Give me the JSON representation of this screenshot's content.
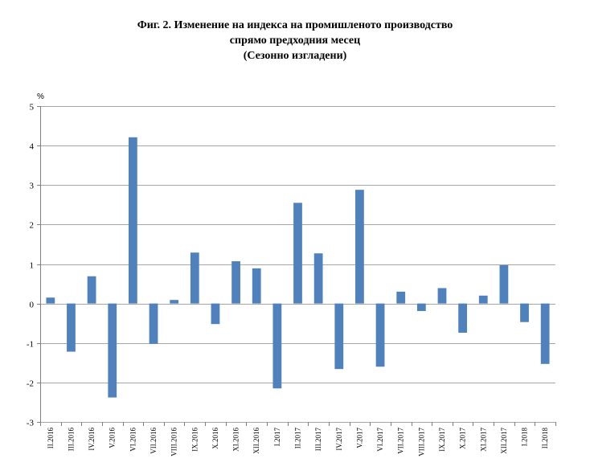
{
  "title_lines": [
    "Фиг. 2. Изменение на индекса на промишленото производство",
    "спрямо предходния месец",
    "(Сезонно изгладени)"
  ],
  "chart_data": {
    "type": "bar",
    "title": "Фиг. 2. Изменение на индекса на промишленото производство спрямо предходния месец (Сезонно изгладени)",
    "ylabel": "%",
    "xlabel": "",
    "ylim": [
      -3,
      5
    ],
    "yticks": [
      -3,
      -2,
      -1,
      0,
      1,
      2,
      3,
      4,
      5
    ],
    "grid": true,
    "legend": "none",
    "bar_color": "#4f81bd",
    "grid_color": "#a6a6a6",
    "categories": [
      "II.2016",
      "III.2016",
      "IV.2016",
      "V.2016",
      "VI.2016",
      "VII.2016",
      "VIII.2016",
      "IX.2016",
      "X.2016",
      "XI.2016",
      "XII.2016",
      "I.2017",
      "II.2017",
      "III.2017",
      "IV.2017",
      "V.2017",
      "VI.2017",
      "VII.2017",
      "VIII.2017",
      "IX.2017",
      "X.2017",
      "XI.2017",
      "XII.2017",
      "I.2018",
      "II.2018"
    ],
    "values": [
      0.15,
      -1.22,
      0.69,
      -2.38,
      4.21,
      -1.02,
      0.09,
      1.29,
      -0.52,
      1.07,
      0.89,
      -2.15,
      2.55,
      1.27,
      -1.66,
      2.88,
      -1.6,
      0.3,
      -0.19,
      0.39,
      -0.74,
      0.2,
      0.97,
      -0.47,
      -1.53
    ]
  }
}
